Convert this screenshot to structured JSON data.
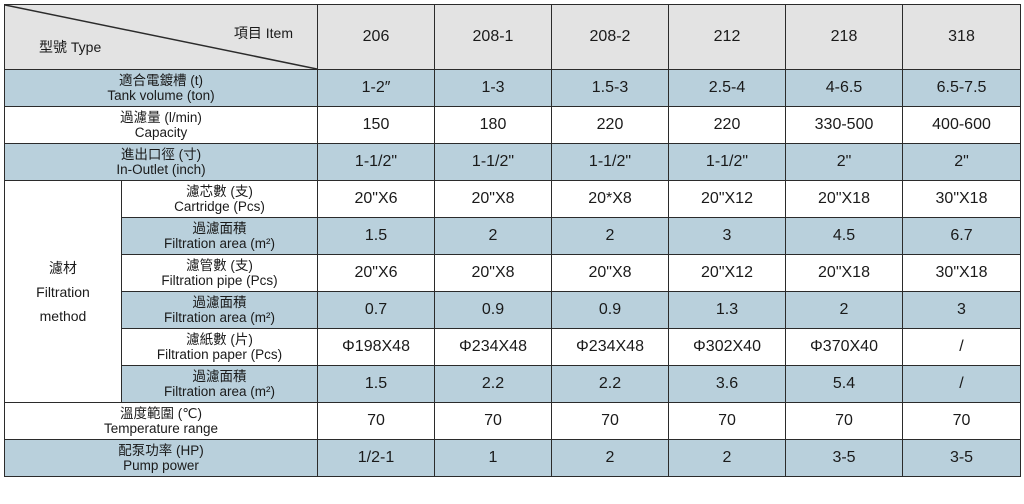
{
  "header": {
    "item_label": "項目 Item",
    "type_label": "型號 Type",
    "models": [
      "206",
      "208-1",
      "208-2",
      "212",
      "218",
      "318"
    ]
  },
  "rows": {
    "tank": {
      "zh": "適合電鍍槽 (t)",
      "en": "Tank volume (ton)",
      "values": [
        "1-2″",
        "1-3",
        "1.5-3",
        "2.5-4",
        "4-6.5",
        "6.5-7.5"
      ]
    },
    "capacity": {
      "zh": "過濾量 (l/min)",
      "en": "Capacity",
      "values": [
        "150",
        "180",
        "220",
        "220",
        "330-500",
        "400-600"
      ]
    },
    "inout": {
      "zh": "進出口徑 (寸)",
      "en": "In-Outlet (inch)",
      "values": [
        "1-1/2\"",
        "1-1/2\"",
        "1-1/2\"",
        "1-1/2\"",
        "2\"",
        "2\""
      ]
    },
    "temp": {
      "zh": "溫度範圍 (℃)",
      "en": "Temperature range",
      "values": [
        "70",
        "70",
        "70",
        "70",
        "70",
        "70"
      ]
    },
    "pump": {
      "zh": "配泵功率 (HP)",
      "en": "Pump power",
      "values": [
        "1/2-1",
        "1",
        "2",
        "2",
        "3-5",
        "3-5"
      ]
    }
  },
  "filtration": {
    "zh": "濾材",
    "en1": "Filtration",
    "en2": "method",
    "subrows": [
      {
        "zh": "濾芯數 (支)",
        "en": "Cartridge (Pcs)",
        "values": [
          "20\"X6",
          "20\"X8",
          "20*X8",
          "20\"X12",
          "20\"X18",
          "30\"X18"
        ]
      },
      {
        "zh": "過濾面積",
        "en": "Filtration area (m²)",
        "values": [
          "1.5",
          "2",
          "2",
          "3",
          "4.5",
          "6.7"
        ]
      },
      {
        "zh": "濾管數 (支)",
        "en": "Filtration pipe (Pcs)",
        "values": [
          "20\"X6",
          "20\"X8",
          "20\"X8",
          "20\"X12",
          "20\"X18",
          "30\"X18"
        ]
      },
      {
        "zh": "過濾面積",
        "en": "Filtration area (m²)",
        "values": [
          "0.7",
          "0.9",
          "0.9",
          "1.3",
          "2",
          "3"
        ]
      },
      {
        "zh": "濾紙數 (片)",
        "en": "Filtration paper (Pcs)",
        "values": [
          "Φ198X48",
          "Φ234X48",
          "Φ234X48",
          "Φ302X40",
          "Φ370X40",
          "/"
        ]
      },
      {
        "zh": "過濾面積",
        "en": "Filtration area (m²)",
        "values": [
          "1.5",
          "2.2",
          "2.2",
          "3.6",
          "5.4",
          "/"
        ]
      }
    ]
  }
}
